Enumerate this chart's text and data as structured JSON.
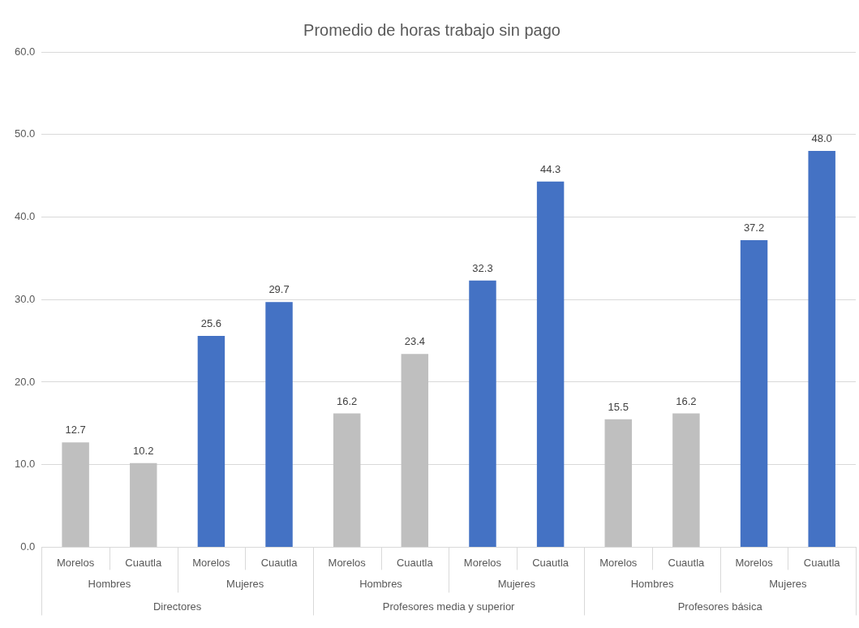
{
  "chart_data": {
    "type": "bar",
    "title": "Promedio de horas trabajo sin pago",
    "categories": [
      "Morelos",
      "Cuautla",
      "Morelos",
      "Cuautla",
      "Morelos",
      "Cuautla",
      "Morelos",
      "Cuautla",
      "Morelos",
      "Cuautla",
      "Morelos",
      "Cuautla"
    ],
    "values": [
      12.7,
      10.2,
      25.6,
      29.7,
      16.2,
      23.4,
      32.3,
      44.3,
      15.5,
      16.2,
      37.2,
      48.0
    ],
    "colors": [
      "#bfbfbf",
      "#bfbfbf",
      "#4472c4",
      "#4472c4",
      "#bfbfbf",
      "#bfbfbf",
      "#4472c4",
      "#4472c4",
      "#bfbfbf",
      "#bfbfbf",
      "#4472c4",
      "#4472c4"
    ],
    "value_labels": [
      "12.7",
      "10.2",
      "25.6",
      "29.7",
      "16.2",
      "23.4",
      "32.3",
      "44.3",
      "15.5",
      "16.2",
      "37.2",
      "48.0"
    ],
    "annotations": [
      "Hombres",
      "Mujeres",
      "Hombres",
      "Mujeres",
      "Hombres",
      "Mujeres",
      "Directores",
      "Profesores media y superior",
      "Profesores básica"
    ],
    "ylim": [
      0,
      60
    ],
    "yticks": [
      {
        "value": 0,
        "label": "0.0"
      },
      {
        "value": 10,
        "label": "10.0"
      },
      {
        "value": 20,
        "label": "20.0"
      },
      {
        "value": 30,
        "label": "30.0"
      },
      {
        "value": 40,
        "label": "40.0"
      },
      {
        "value": 50,
        "label": "50.0"
      },
      {
        "value": 60,
        "label": "60.0"
      }
    ],
    "grid": "y",
    "legend": false
  }
}
